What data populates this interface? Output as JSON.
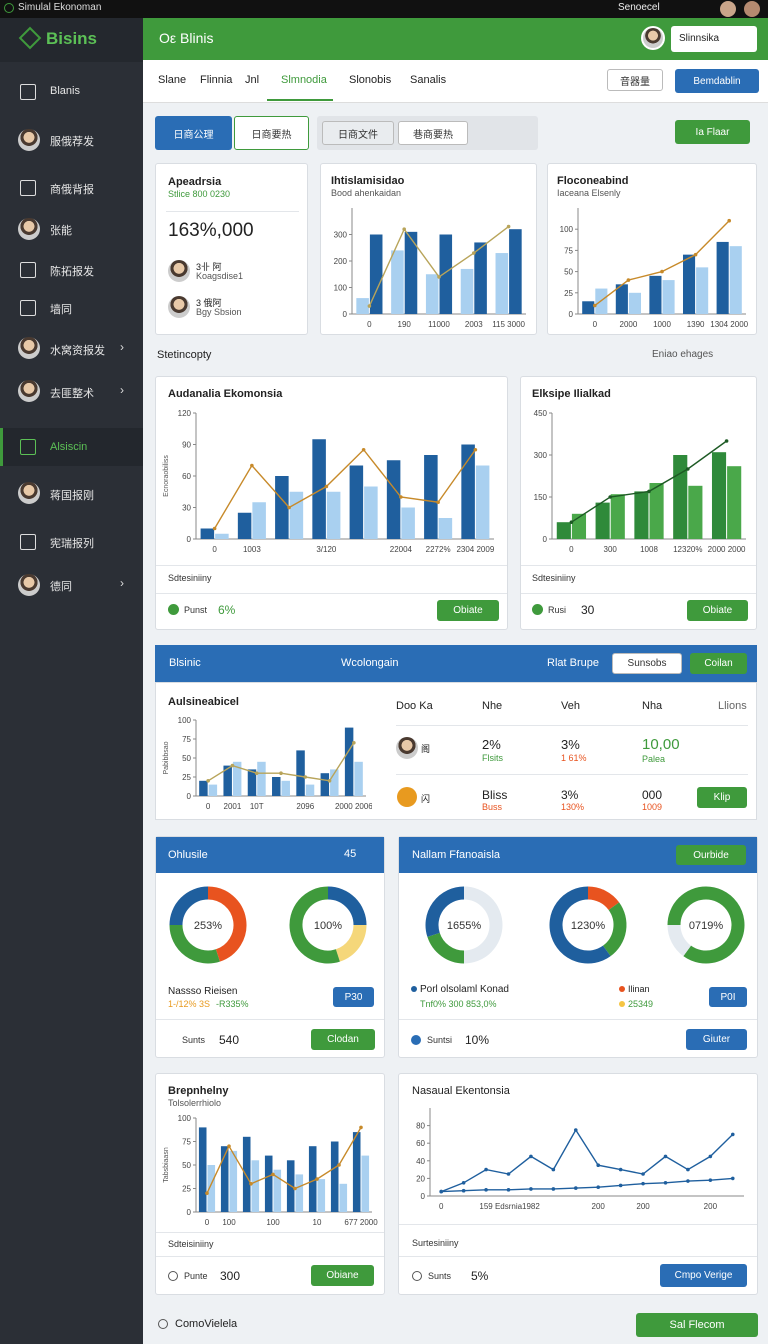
{
  "titlebar": {
    "title": "Simulal Ekonoman",
    "right": "Senoecel"
  },
  "sidebar": {
    "logo": "Bisins",
    "items": [
      "Blanis",
      "服俄荐发",
      "商俄背报",
      "张能",
      "陈拓报发",
      "墙同",
      "水窝资报发",
      "去匪整术",
      "Alsiscin",
      "蒋国报刚",
      "宪瑞报列",
      "德同"
    ]
  },
  "header": {
    "title": "Oε Blinis",
    "user": "Slinnsika"
  },
  "tabs": [
    "Slane",
    "Flinnia",
    "Jnl",
    "Slmnodia",
    "Slonobis",
    "Sanalis"
  ],
  "toolbar": {
    "select": "音器量",
    "button": "Bemdablin",
    "btn1": "日商公理",
    "btn2": "日商要热",
    "btn3": "日商文件",
    "btn4": "巷商要热",
    "green": "Ia Flaar"
  },
  "summary": {
    "title": "Apeadrsia",
    "subtitle": "Stlice 800 0230",
    "big": "163%,000",
    "people": [
      {
        "name": "3卝 阿",
        "sub": "Koagsdise1"
      },
      {
        "name": "3 俄阿",
        "sub": "Bgy Sbsion"
      }
    ]
  },
  "section": {
    "title": "Stetincopty",
    "right": "Eniao ehages"
  },
  "charts": {
    "c1": {
      "type": "bar",
      "title": "Ihtislamisidao",
      "subtitle": "Bood ahenkaidan",
      "categories": [
        "0",
        "190",
        "11000",
        "2003",
        "115 3000"
      ],
      "ylim": [
        0,
        400
      ],
      "yticks": [
        0,
        100,
        200,
        300
      ],
      "series": [
        {
          "color": "#a9d0f0",
          "values": [
            60,
            240,
            150,
            170,
            230
          ]
        },
        {
          "color": "#1f5f9e",
          "values": [
            300,
            310,
            300,
            270,
            320
          ]
        },
        {
          "kind": "line",
          "color": "#b8a45a",
          "values": [
            30,
            320,
            140,
            230,
            330
          ]
        }
      ]
    },
    "c2": {
      "type": "bar",
      "title": "Floconeabind",
      "subtitle": "Iaceana Elsenly",
      "categories": [
        "0",
        "2000",
        "1000",
        "1390",
        "1304 2000"
      ],
      "ylim": [
        0,
        125
      ],
      "yticks": [
        0,
        25,
        50,
        75,
        100
      ],
      "series": [
        {
          "color": "#1f5f9e",
          "values": [
            15,
            35,
            45,
            70,
            85
          ]
        },
        {
          "color": "#a9d0f0",
          "values": [
            30,
            25,
            40,
            55,
            80
          ]
        },
        {
          "kind": "line",
          "color": "#c78a2a",
          "values": [
            10,
            40,
            50,
            70,
            110
          ]
        }
      ]
    },
    "c3": {
      "type": "bar",
      "title": "Audanalia Ekomonsia",
      "ylabel": "Ecnoraobiliss",
      "categories": [
        "0",
        "1003",
        null,
        "3/120",
        null,
        "22004",
        "2272%",
        "2304 2009"
      ],
      "ylim": [
        0,
        120
      ],
      "yticks": [
        0,
        30,
        60,
        90,
        120
      ],
      "series": [
        {
          "color": "#1f5f9e",
          "values": [
            10,
            25,
            60,
            95,
            70,
            75,
            80,
            90
          ]
        },
        {
          "color": "#a9d0f0",
          "values": [
            5,
            35,
            45,
            45,
            50,
            30,
            20,
            70
          ]
        },
        {
          "kind": "line",
          "color": "#c78a2a",
          "values": [
            10,
            70,
            30,
            50,
            85,
            40,
            35,
            85
          ]
        }
      ]
    },
    "c4": {
      "type": "bar",
      "title": "Elksipe Ilialkad",
      "categories": [
        "0",
        "300",
        "1008",
        "12320%",
        "2000 2000"
      ],
      "ylim": [
        0,
        450
      ],
      "yticks": [
        0,
        150,
        300,
        450
      ],
      "series": [
        {
          "color": "#2f8a3a",
          "values": [
            60,
            130,
            170,
            300,
            310
          ]
        },
        {
          "color": "#4aa84a",
          "values": [
            90,
            160,
            200,
            190,
            260
          ]
        },
        {
          "kind": "line",
          "color": "#1d5a24",
          "values": [
            60,
            150,
            170,
            250,
            350
          ]
        }
      ]
    },
    "c5": {
      "type": "bar",
      "title": "Aulsineabicel",
      "ylabel": "Pabibbsao",
      "categories": [
        "0",
        "2001",
        "10T",
        null,
        "2096",
        null,
        "2000 2006"
      ],
      "ylim": [
        0,
        100
      ],
      "yticks": [
        0,
        25,
        50,
        75,
        100
      ],
      "series": [
        {
          "color": "#1f5f9e",
          "values": [
            20,
            40,
            35,
            25,
            60,
            30,
            90
          ]
        },
        {
          "color": "#a9d0f0",
          "values": [
            15,
            45,
            45,
            20,
            15,
            35,
            45
          ]
        },
        {
          "kind": "line",
          "color": "#b8a45a",
          "values": [
            20,
            40,
            30,
            30,
            25,
            20,
            70
          ]
        }
      ]
    },
    "c6": {
      "type": "bar",
      "title": "Brepnhelny",
      "subtitle": "Tolsolerrhiolo",
      "ylabel": "Tabsbiaasn",
      "categories": [
        "0",
        "100",
        null,
        "100",
        null,
        "10",
        null,
        "677 2000"
      ],
      "ylim": [
        0,
        100
      ],
      "yticks": [
        0,
        25,
        50,
        75,
        100
      ],
      "series": [
        {
          "color": "#1f5f9e",
          "values": [
            90,
            70,
            80,
            60,
            55,
            70,
            75,
            85
          ]
        },
        {
          "color": "#a9d0f0",
          "values": [
            50,
            65,
            55,
            45,
            40,
            35,
            30,
            60
          ]
        },
        {
          "kind": "line",
          "color": "#c78a2a",
          "values": [
            20,
            70,
            30,
            40,
            25,
            35,
            50,
            90
          ]
        }
      ]
    },
    "c7": {
      "type": "line",
      "title": "Nasaual Ekentonsia",
      "categories": [
        "0",
        null,
        "159",
        "Edsrnia",
        "1982",
        null,
        null,
        "200",
        null,
        "200",
        null,
        null,
        "200",
        null
      ],
      "ylim": [
        0,
        100
      ],
      "yticks": [
        0,
        20,
        40,
        60,
        80
      ],
      "series": [
        {
          "color": "#1f5f9e",
          "values": [
            5,
            15,
            30,
            25,
            45,
            30,
            75,
            35,
            30,
            25,
            45,
            30,
            45,
            70
          ]
        },
        {
          "color": "#1f5f9e",
          "values": [
            5,
            6,
            7,
            7,
            8,
            8,
            9,
            10,
            12,
            14,
            15,
            17,
            18,
            20
          ]
        }
      ]
    }
  },
  "panel": {
    "title": "Blsinic",
    "mid": "Wcolongain",
    "right": "Rlat Brupe",
    "btn1": "Sunsobs",
    "btn2": "Coilan",
    "table": {
      "header": [
        "Doo Ka",
        "Nhe",
        "Veh",
        "Nha",
        "Llions"
      ],
      "rows": [
        [
          "阁",
          "2%",
          "Flsits",
          "3%",
          "1 61%",
          "10,00",
          "Palea"
        ],
        [
          "闪",
          "Bliss",
          "Buss",
          "3%",
          "130%",
          "000",
          "1009",
          "Klip"
        ]
      ]
    }
  },
  "donuts": {
    "left": {
      "title": "Ohlusile",
      "search": "45",
      "legend": "Nassso Rieisen",
      "legend_a": "1-/12% 3S",
      "legend_b": "-R335%",
      "badge": "P30",
      "foot_label": "Sunts",
      "foot_value": "540",
      "button": "Clodan",
      "items": [
        {
          "label": "253%",
          "values": [
            45,
            30,
            25
          ],
          "colors": [
            "#e8531f",
            "#3f9a3c",
            "#1f5f9e"
          ]
        },
        {
          "label": "100%",
          "values": [
            25,
            20,
            55
          ],
          "colors": [
            "#1f5f9e",
            "#f5d77a",
            "#3f9a3c"
          ]
        }
      ]
    },
    "right": {
      "title": "Nallam Ffanoaisla",
      "button_top": "Ourbide",
      "legend": "Porl olsolaml Konad",
      "legend_a": "Tnf0% 300 853,0%",
      "legend_b": "Ilinan",
      "legend_c": "25349",
      "badge": "P0I",
      "foot_label": "Suntsi",
      "foot_value": "10%",
      "button": "Giuter",
      "items": [
        {
          "label": "1655%",
          "values": [
            50,
            20,
            30
          ],
          "colors": [
            "#e4eaf0",
            "#3f9a3c",
            "#1f5f9e"
          ]
        },
        {
          "label": "1230%",
          "values": [
            15,
            25,
            60
          ],
          "colors": [
            "#e8531f",
            "#3f9a3c",
            "#1f5f9e"
          ]
        },
        {
          "label": "0719%",
          "values": [
            60,
            15,
            25
          ],
          "colors": [
            "#3f9a3c",
            "#e4eaf0",
            "#3f9a3c"
          ]
        }
      ]
    }
  },
  "footers": {
    "c3": {
      "row": "Sdtesiniiny",
      "label": "Punst",
      "value": "6%",
      "button": "Obiate"
    },
    "c4": {
      "row": "Sdtesiniiny",
      "label": "Rusi",
      "value": "30",
      "button": "Obiate"
    },
    "c6": {
      "row": "Sdteisiniiny",
      "label": "Punte",
      "value": "300",
      "button": "Obiane"
    },
    "c7": {
      "row": "Surtesiniiny",
      "label": "Sunts",
      "value": "5%",
      "button": "Cmpo Verige"
    }
  },
  "bottom": {
    "label": "ComoVielela",
    "button": "Sal Flecom"
  }
}
